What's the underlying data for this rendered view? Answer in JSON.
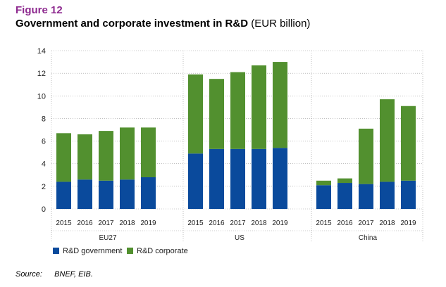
{
  "figure": {
    "label": "Figure 12",
    "title_main": "Government and corporate investment in R&D",
    "title_unit": "(EUR billion)"
  },
  "source": {
    "label": "Source:",
    "text": "BNEF, EIB."
  },
  "colors": {
    "government": "#0a4a9c",
    "corporate": "#52902f",
    "label_accent": "#8e2a8f"
  },
  "chart_data": {
    "type": "bar",
    "stacked": true,
    "ylim": [
      0,
      14
    ],
    "yticks": [
      0,
      2,
      4,
      6,
      8,
      10,
      12,
      14
    ],
    "grid": true,
    "legend_position": "bottom-left",
    "groups": [
      {
        "name": "EU27",
        "categories": [
          "2015",
          "2016",
          "2017",
          "2018",
          "2019"
        ],
        "government": [
          2.4,
          2.6,
          2.5,
          2.6,
          2.8
        ],
        "corporate": [
          4.3,
          4.0,
          4.4,
          4.6,
          4.4
        ]
      },
      {
        "name": "US",
        "categories": [
          "2015",
          "2016",
          "2017",
          "2018",
          "2019"
        ],
        "government": [
          4.9,
          5.3,
          5.3,
          5.3,
          5.4
        ],
        "corporate": [
          7.0,
          6.2,
          6.8,
          7.4,
          7.6
        ]
      },
      {
        "name": "China",
        "categories": [
          "2015",
          "2016",
          "2017",
          "2018",
          "2019"
        ],
        "government": [
          2.1,
          2.3,
          2.2,
          2.4,
          2.5
        ],
        "corporate": [
          0.4,
          0.4,
          4.9,
          7.3,
          6.6
        ]
      }
    ],
    "series": [
      {
        "key": "government",
        "name": "R&D government"
      },
      {
        "key": "corporate",
        "name": "R&D corporate"
      }
    ]
  }
}
